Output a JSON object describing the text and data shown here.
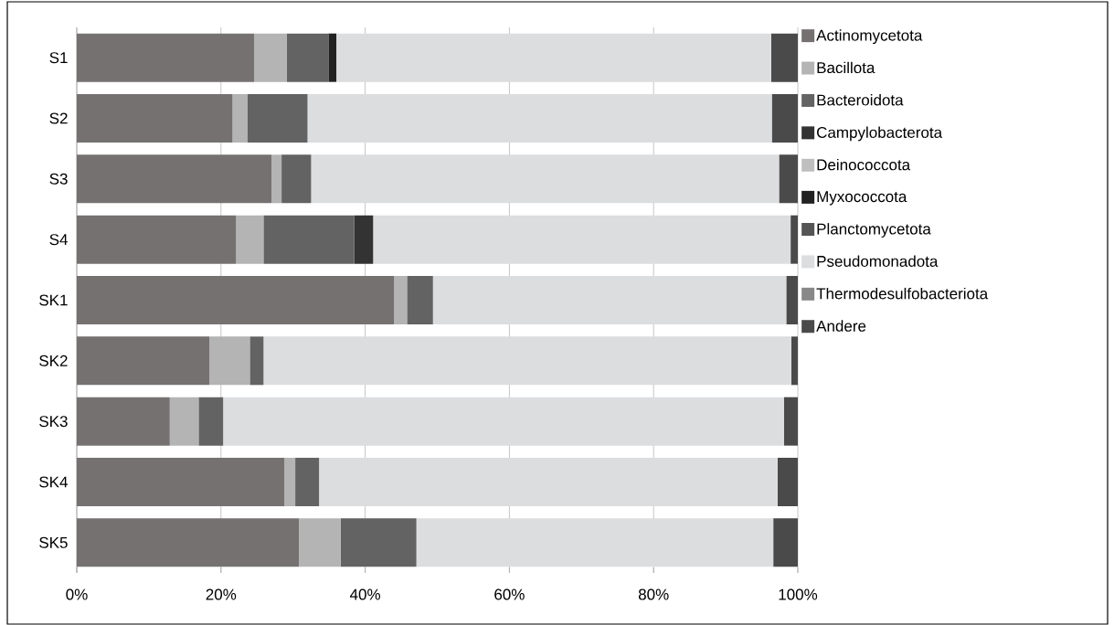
{
  "chart_data": {
    "type": "bar",
    "orientation": "horizontal",
    "stacked": true,
    "categories": [
      "S1",
      "S2",
      "S3",
      "S4",
      "SK1",
      "SK2",
      "SK3",
      "SK4",
      "SK5"
    ],
    "series": [
      {
        "name": "Actinomycetota",
        "color": "#767171",
        "values": [
          24.6,
          21.6,
          27.0,
          22.1,
          44.0,
          18.4,
          12.9,
          28.8,
          30.8
        ]
      },
      {
        "name": "Bacillota",
        "color": "#b4b4b4",
        "values": [
          4.5,
          2.1,
          1.4,
          3.8,
          1.8,
          5.6,
          4.0,
          1.5,
          5.8
        ]
      },
      {
        "name": "Bacteroidota",
        "color": "#636363",
        "values": [
          5.8,
          8.3,
          4.1,
          12.6,
          3.6,
          1.9,
          3.4,
          3.3,
          10.5
        ]
      },
      {
        "name": "Campylobacterota",
        "color": "#333333",
        "values": [
          0,
          0,
          0,
          2.6,
          0,
          0,
          0,
          0,
          0
        ]
      },
      {
        "name": "Deinococcota",
        "color": "#bfbfbf",
        "values": [
          0,
          0,
          0,
          0,
          0,
          0,
          0,
          0,
          0
        ]
      },
      {
        "name": "Myxococcota",
        "color": "#222222",
        "values": [
          1.1,
          0,
          0,
          0,
          0,
          0,
          0,
          0,
          0
        ]
      },
      {
        "name": "Planctomycetota",
        "color": "#555555",
        "values": [
          0,
          0,
          0,
          0,
          0,
          0,
          0,
          0,
          0
        ]
      },
      {
        "name": "Pseudomonadota",
        "color": "#dcdddf",
        "values": [
          60.3,
          64.4,
          64.9,
          57.9,
          49.0,
          73.2,
          77.8,
          63.6,
          49.5
        ]
      },
      {
        "name": "Thermodesulfobacteriota",
        "color": "#888888",
        "values": [
          0,
          0,
          0,
          0,
          0,
          0,
          0,
          0,
          0
        ]
      },
      {
        "name": "Andere",
        "color": "#4a4a4a",
        "values": [
          3.7,
          3.6,
          2.6,
          1.0,
          1.6,
          0.9,
          1.9,
          2.8,
          3.4
        ]
      }
    ],
    "xlim": [
      0,
      100
    ],
    "xticks": [
      {
        "value": 0,
        "label": "0%"
      },
      {
        "value": 20,
        "label": "20%"
      },
      {
        "value": 40,
        "label": "40%"
      },
      {
        "value": 60,
        "label": "60%"
      },
      {
        "value": 80,
        "label": "80%"
      },
      {
        "value": 100,
        "label": "100%"
      }
    ],
    "grid": "x",
    "legend": "right"
  }
}
